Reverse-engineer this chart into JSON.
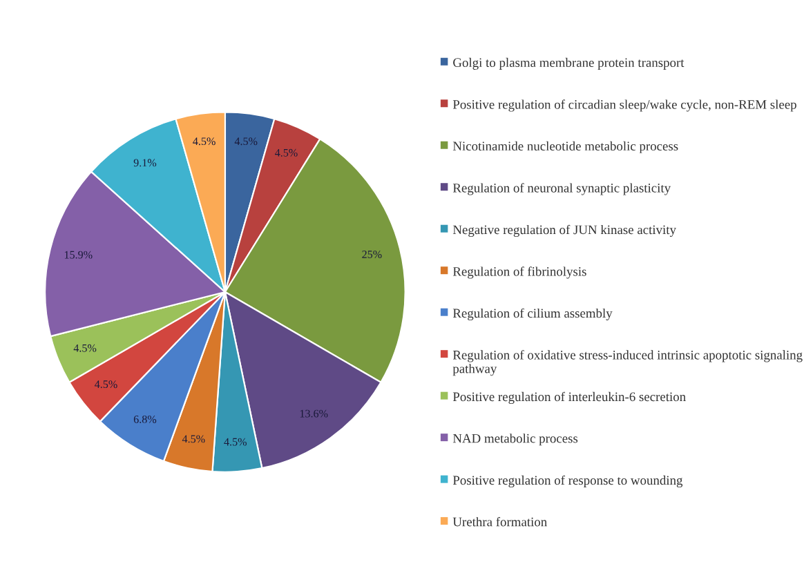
{
  "chart_data": {
    "type": "pie",
    "legend": "right",
    "value_labels": [
      "4.5%",
      "4.5%",
      "25%",
      "13.6%",
      "4.5%",
      "4.5%",
      "6.8%",
      "4.5%",
      "4.5%",
      "15.9%",
      "9.1%",
      "4.5%"
    ],
    "categories": [
      "Golgi to plasma membrane protein transport",
      "Positive regulation of circadian sleep/wake cycle, non-REM sleep",
      "Nicotinamide nucleotide metabolic process",
      "Regulation of neuronal synaptic plasticity",
      "Negative regulation of JUN kinase activity",
      "Regulation of fibrinolysis",
      "Regulation of cilium assembly",
      "Regulation of oxidative stress-induced intrinsic apoptotic signaling pathway",
      "Positive regulation of interleukin-6 secretion",
      "NAD metabolic process",
      "Positive regulation of response to wounding",
      "Urethra formation"
    ],
    "values": [
      4.5,
      4.5,
      25,
      13.6,
      4.5,
      4.5,
      6.8,
      4.5,
      4.5,
      15.9,
      9.1,
      4.5
    ],
    "colors": [
      "#3a659e",
      "#b8413e",
      "#7a9a3f",
      "#5f4a86",
      "#3597b3",
      "#d8782a",
      "#4a7fcb",
      "#d2463f",
      "#9bc15a",
      "#8460a8",
      "#3fb3cf",
      "#fbaa55"
    ]
  }
}
